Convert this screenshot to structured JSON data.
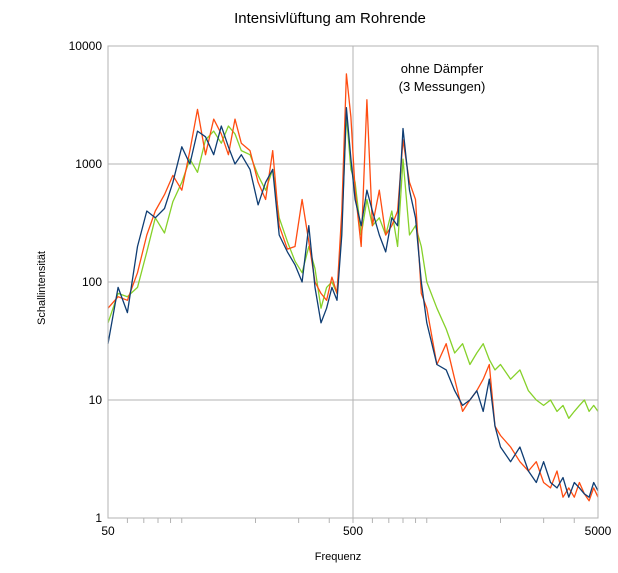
{
  "chart_data": {
    "type": "line",
    "title": "Intensivlüftung am Rohrende",
    "xlabel": "Frequenz",
    "ylabel": "Schallintensität",
    "x_scale": "log",
    "y_scale": "log",
    "xlim": [
      50,
      5000
    ],
    "ylim": [
      1,
      10000
    ],
    "x_ticks": [
      {
        "value": 50,
        "label": "50"
      },
      {
        "value": 500,
        "label": "500"
      },
      {
        "value": 5000,
        "label": "5000"
      }
    ],
    "y_ticks": [
      {
        "value": 1,
        "label": "1"
      },
      {
        "value": 10,
        "label": "10"
      },
      {
        "value": 100,
        "label": "100"
      },
      {
        "value": 1000,
        "label": "1000"
      },
      {
        "value": 10000,
        "label": "10000"
      }
    ],
    "grid": true,
    "annotation_lines": [
      "ohne Dämpfer",
      "(3 Messungen)"
    ],
    "series_colors": [
      "#86d12a",
      "#ff4d12",
      "#0f3d73"
    ],
    "series": [
      {
        "color": "#86d12a",
        "x": [
          50,
          55,
          60,
          66,
          72,
          78,
          85,
          92,
          100,
          108,
          116,
          125,
          135,
          145,
          155,
          165,
          175,
          190,
          205,
          220,
          235,
          250,
          270,
          290,
          310,
          330,
          350,
          370,
          390,
          410,
          430,
          450,
          470,
          490,
          510,
          540,
          570,
          600,
          640,
          680,
          720,
          760,
          800,
          850,
          900,
          950,
          1000,
          1100,
          1200,
          1300,
          1400,
          1500,
          1600,
          1700,
          1800,
          1900,
          2000,
          2200,
          2400,
          2600,
          2800,
          3000,
          3200,
          3400,
          3600,
          3800,
          4000,
          4200,
          4400,
          4600,
          4800,
          5000
        ],
        "y": [
          45,
          80,
          75,
          90,
          180,
          350,
          260,
          480,
          700,
          1100,
          850,
          1600,
          1900,
          1500,
          2100,
          1800,
          1300,
          1200,
          800,
          600,
          900,
          350,
          220,
          150,
          120,
          200,
          130,
          60,
          90,
          100,
          80,
          300,
          2600,
          900,
          700,
          250,
          500,
          300,
          350,
          250,
          400,
          200,
          1100,
          250,
          300,
          200,
          100,
          60,
          40,
          25,
          30,
          20,
          25,
          30,
          22,
          18,
          20,
          15,
          18,
          12,
          10,
          9,
          10,
          8,
          9,
          7,
          8,
          9,
          10,
          8,
          9,
          8
        ]
      },
      {
        "color": "#ff4d12",
        "x": [
          50,
          55,
          60,
          66,
          72,
          78,
          85,
          92,
          100,
          108,
          116,
          125,
          135,
          145,
          155,
          165,
          175,
          190,
          205,
          220,
          235,
          250,
          270,
          290,
          310,
          330,
          350,
          370,
          390,
          410,
          430,
          450,
          470,
          490,
          510,
          540,
          570,
          600,
          640,
          680,
          720,
          760,
          800,
          850,
          900,
          950,
          1000,
          1100,
          1200,
          1300,
          1400,
          1500,
          1600,
          1700,
          1800,
          1900,
          2000,
          2200,
          2400,
          2600,
          2800,
          3000,
          3200,
          3400,
          3600,
          3800,
          4000,
          4200,
          4400,
          4600,
          4800,
          5000
        ],
        "y": [
          60,
          75,
          70,
          120,
          250,
          400,
          550,
          800,
          600,
          1300,
          2900,
          1200,
          2400,
          1800,
          1200,
          2400,
          1500,
          1300,
          700,
          500,
          1300,
          300,
          190,
          200,
          500,
          220,
          100,
          80,
          70,
          110,
          80,
          400,
          5800,
          2500,
          600,
          200,
          3500,
          300,
          600,
          250,
          300,
          400,
          1600,
          700,
          500,
          80,
          60,
          20,
          30,
          15,
          8,
          10,
          12,
          15,
          20,
          6,
          5,
          4,
          3,
          2.5,
          3,
          2,
          1.8,
          2.5,
          1.5,
          1.8,
          1.5,
          2,
          1.6,
          1.4,
          1.8,
          1.5
        ]
      },
      {
        "color": "#0f3d73",
        "x": [
          50,
          55,
          60,
          66,
          72,
          78,
          85,
          92,
          100,
          108,
          116,
          125,
          135,
          145,
          155,
          165,
          175,
          190,
          205,
          220,
          235,
          250,
          270,
          290,
          310,
          330,
          350,
          370,
          390,
          410,
          430,
          450,
          470,
          490,
          510,
          540,
          570,
          600,
          640,
          680,
          720,
          760,
          800,
          850,
          900,
          950,
          1000,
          1100,
          1200,
          1300,
          1400,
          1500,
          1600,
          1700,
          1800,
          1900,
          2000,
          2200,
          2400,
          2600,
          2800,
          3000,
          3200,
          3400,
          3600,
          3800,
          4000,
          4200,
          4400,
          4600,
          4800,
          5000
        ],
        "y": [
          30,
          90,
          55,
          200,
          400,
          350,
          420,
          700,
          1400,
          1000,
          1900,
          1700,
          1200,
          2100,
          1400,
          1000,
          1200,
          900,
          450,
          700,
          900,
          250,
          180,
          140,
          100,
          300,
          90,
          45,
          60,
          90,
          70,
          250,
          3000,
          1100,
          500,
          300,
          600,
          400,
          250,
          180,
          350,
          300,
          2000,
          600,
          350,
          100,
          45,
          20,
          18,
          12,
          9,
          10,
          12,
          8,
          15,
          6,
          4,
          3,
          4,
          2.5,
          2,
          3,
          2,
          1.8,
          2.2,
          1.5,
          2,
          1.8,
          1.6,
          1.5,
          2,
          1.7
        ]
      }
    ]
  }
}
